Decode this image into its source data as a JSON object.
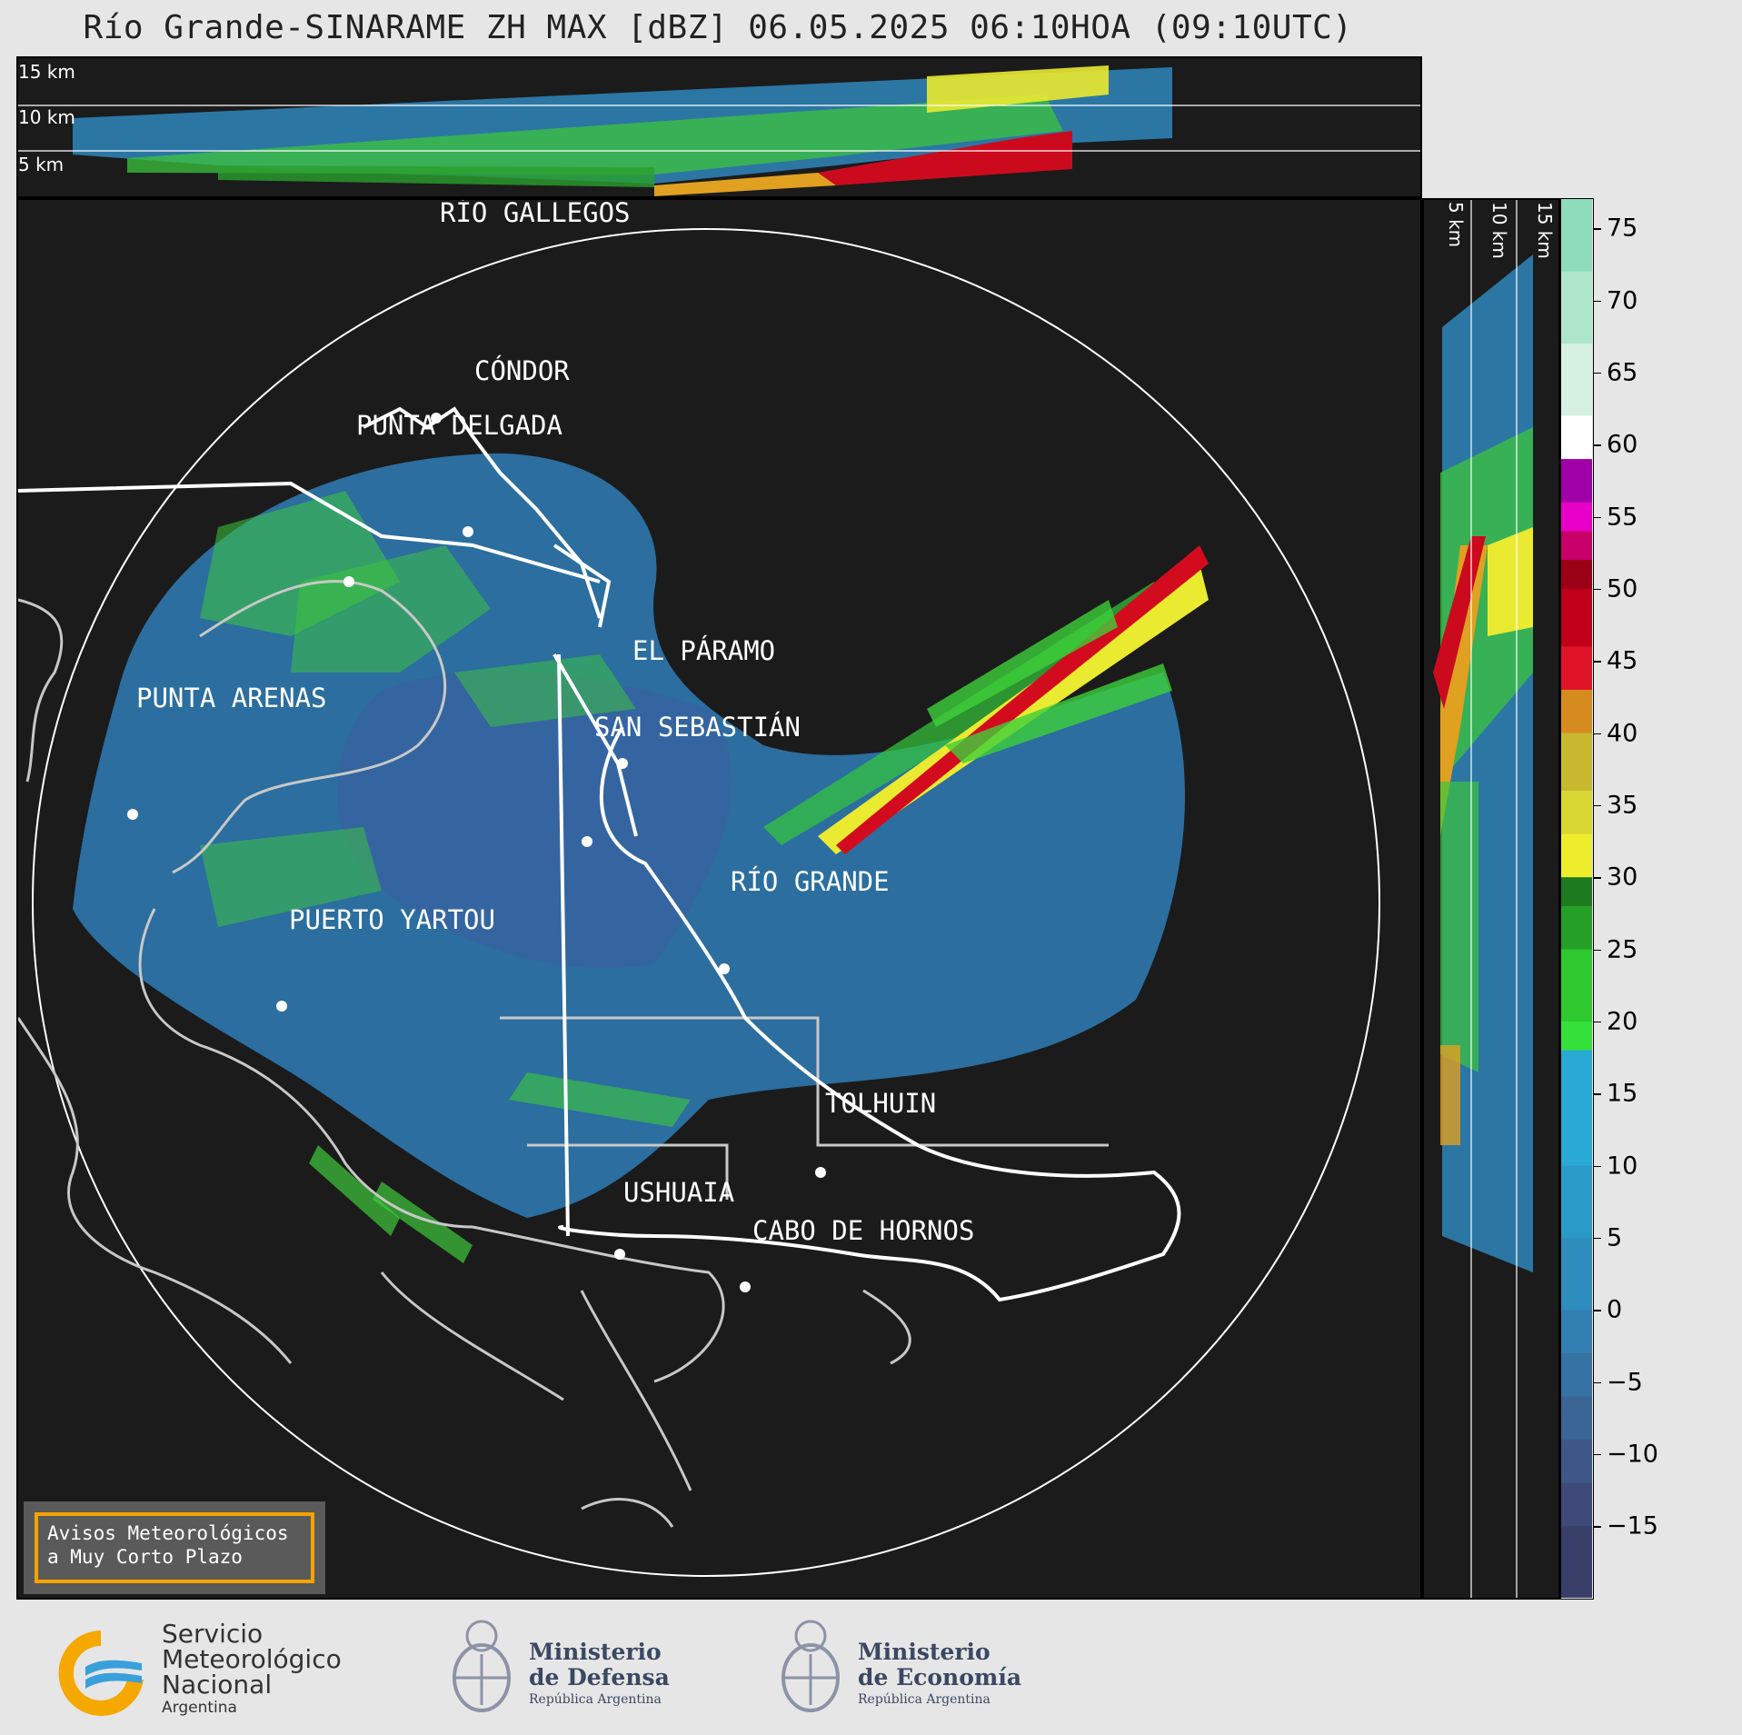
{
  "title": "Río Grande-SINARAME ZH MAX [dBZ] 06.05.2025 06:10HOA (09:10UTC)",
  "top_panel": {
    "height_labels": [
      "15 km",
      "10 km",
      "5 km"
    ]
  },
  "right_panel": {
    "height_labels": [
      "5 km",
      "10 km",
      "15 km"
    ]
  },
  "map": {
    "cities": [
      {
        "name": "RÍO GALLEGOS"
      },
      {
        "name": "CÓNDOR"
      },
      {
        "name": "PUNTA DELGADA"
      },
      {
        "name": "EL PÁRAMO"
      },
      {
        "name": "PUNTA ARENAS"
      },
      {
        "name": "SAN SEBASTIÁN"
      },
      {
        "name": "RÍO GRANDE"
      },
      {
        "name": "PUERTO YARTOU"
      },
      {
        "name": "TOLHUIN"
      },
      {
        "name": "USHUAIA"
      },
      {
        "name": "CABO DE HORNOS"
      }
    ]
  },
  "colorbar": {
    "unit": "dBZ",
    "range": [
      -20,
      77
    ],
    "ticks": [
      "75",
      "70",
      "65",
      "60",
      "55",
      "50",
      "45",
      "40",
      "35",
      "30",
      "25",
      "20",
      "15",
      "10",
      "5",
      "0",
      "−5",
      "−10",
      "−15"
    ],
    "colors_low_to_high": [
      "#3a3f6a",
      "#3f4a7a",
      "#3d5788",
      "#3a6595",
      "#3672a3",
      "#3280b1",
      "#2e8dbd",
      "#2a9bc8",
      "#29a9d6",
      "#35e03a",
      "#2ec82f",
      "#259f26",
      "#1e7a1f",
      "#eded2e",
      "#d8d834",
      "#c8b830",
      "#d68b1f",
      "#e01428",
      "#c0001a",
      "#9a0016",
      "#c8006a",
      "#e800c8",
      "#a000a8",
      "#ffffff",
      "#d6f0e2",
      "#aee6cb",
      "#8edcbc"
    ],
    "color_stops": [
      -20,
      -15,
      -12,
      -9,
      -6,
      -3,
      0,
      5,
      10,
      18,
      20,
      25,
      28,
      30,
      33,
      36,
      40,
      43,
      46,
      50,
      52,
      54,
      56,
      59,
      62,
      67,
      72
    ]
  },
  "notice": {
    "line1": "Avisos Meteorológicos",
    "line2": "a Muy Corto Plazo"
  },
  "logos": {
    "smn": {
      "line1": "Servicio",
      "line2": "Meteorológico",
      "line3": "Nacional",
      "line4": "Argentina"
    },
    "defensa": {
      "line1": "Ministerio",
      "line2": "de Defensa",
      "line3": "República Argentina"
    },
    "economia": {
      "line1": "Ministerio",
      "line2": "de Economía",
      "line3": "República Argentina"
    }
  }
}
